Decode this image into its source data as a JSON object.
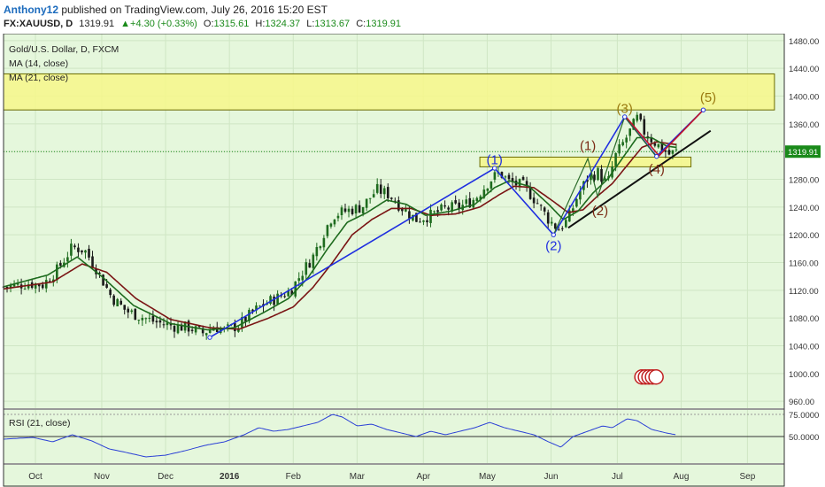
{
  "header": {
    "author": "Anthony12",
    "published": "published on TradingView.com, July 26, 2016 15:20 EST",
    "symbol": "FX:XAUUSD, D",
    "last": "1319.91",
    "change_arrow": "▲",
    "change": "+4.30 (+0.33%)",
    "o_label": "O:",
    "o_value": "1315.61",
    "h_label": "H:",
    "h_value": "1324.37",
    "l_label": "L:",
    "l_value": "1313.67",
    "c_label": "C:",
    "c_value": "1319.91"
  },
  "legend": {
    "title": "Gold/U.S. Dollar, D, FXCM",
    "ma14": "MA (14, close)",
    "ma21": "MA (21, close)",
    "rsi": "RSI (21, close)"
  },
  "colors": {
    "background": "#e5f7dc",
    "grid": "#cfe6c4",
    "candle_up": "#1e6b1e",
    "candle_down": "#1a1a1a",
    "ma14": "#1e6b1e",
    "ma21": "#7a1414",
    "rsi": "#2a3fd6",
    "blue_line": "#1f2fe0",
    "zone_fill": "#f7f78a",
    "zone_stroke": "#6b6b00",
    "label_blue": "#1f2fe0",
    "label_brown": "#7a2a14",
    "label_gold": "#9a7a10",
    "last_price_line": "#1a8a1a"
  },
  "chart_data": {
    "type": "line",
    "price_axis": {
      "ticks": [
        1480.0,
        1440.0,
        1400.0,
        1360.0,
        1320.0,
        1280.0,
        1240.0,
        1200.0,
        1160.0,
        1120.0,
        1080.0,
        1040.0,
        1000.0,
        960.0
      ],
      "tick_labels": [
        "1480.00",
        "1440.00",
        "1400.00",
        "1360.00",
        "1320.00",
        "1280.00",
        "1240.00",
        "1200.00",
        "1160.00",
        "1120.00",
        "1080.00",
        "1040.00",
        "1000.00",
        "960.00"
      ],
      "range": [
        950,
        1490
      ],
      "last_price_label": "1319.91",
      "last_price": 1319.91
    },
    "rsi_axis": {
      "tick_labels": [
        "75.0000",
        "50.0000"
      ],
      "ticks": [
        75,
        50
      ],
      "range": [
        20,
        80
      ]
    },
    "time_axis": {
      "labels": [
        "Oct",
        "Nov",
        "Dec",
        "2016",
        "Feb",
        "Mar",
        "Apr",
        "May",
        "Jun",
        "Jul",
        "Aug",
        "Sep"
      ],
      "positions": [
        0.5,
        3.2,
        5.8,
        8.4,
        11.0,
        13.6,
        16.3,
        18.9,
        21.5,
        24.2,
        26.8,
        29.5
      ],
      "range": [
        -0.8,
        31
      ]
    },
    "price_anchors": [
      [
        -0.8,
        1125
      ],
      [
        0.2,
        1130
      ],
      [
        0.8,
        1128
      ],
      [
        1.4,
        1150
      ],
      [
        2.0,
        1182
      ],
      [
        2.5,
        1178
      ],
      [
        3.0,
        1150
      ],
      [
        3.6,
        1110
      ],
      [
        4.2,
        1090
      ],
      [
        4.8,
        1082
      ],
      [
        5.4,
        1074
      ],
      [
        6.2,
        1068
      ],
      [
        6.8,
        1066
      ],
      [
        7.3,
        1058
      ],
      [
        7.8,
        1068
      ],
      [
        8.2,
        1062
      ],
      [
        8.8,
        1070
      ],
      [
        9.4,
        1090
      ],
      [
        9.9,
        1102
      ],
      [
        10.4,
        1110
      ],
      [
        10.9,
        1120
      ],
      [
        11.4,
        1148
      ],
      [
        11.8,
        1168
      ],
      [
        12.2,
        1200
      ],
      [
        12.6,
        1228
      ],
      [
        13.2,
        1235
      ],
      [
        13.8,
        1240
      ],
      [
        14.4,
        1265
      ],
      [
        14.9,
        1258
      ],
      [
        15.4,
        1240
      ],
      [
        16.0,
        1222
      ],
      [
        16.6,
        1228
      ],
      [
        17.2,
        1238
      ],
      [
        17.8,
        1240
      ],
      [
        18.4,
        1252
      ],
      [
        19.0,
        1278
      ],
      [
        19.4,
        1290
      ],
      [
        19.8,
        1276
      ],
      [
        20.4,
        1270
      ],
      [
        20.9,
        1248
      ],
      [
        21.4,
        1222
      ],
      [
        21.8,
        1208
      ],
      [
        22.2,
        1222
      ],
      [
        22.6,
        1258
      ],
      [
        23.0,
        1282
      ],
      [
        23.4,
        1290
      ],
      [
        23.8,
        1272
      ],
      [
        24.1,
        1312
      ],
      [
        24.4,
        1330
      ],
      [
        24.7,
        1348
      ],
      [
        25.0,
        1368
      ],
      [
        25.3,
        1348
      ],
      [
        25.7,
        1334
      ],
      [
        26.0,
        1325
      ],
      [
        26.3,
        1316
      ],
      [
        26.6,
        1320
      ]
    ],
    "ma14_anchors": [
      [
        -0.8,
        1125
      ],
      [
        1.0,
        1142
      ],
      [
        2.2,
        1168
      ],
      [
        3.2,
        1140
      ],
      [
        4.5,
        1098
      ],
      [
        6.0,
        1072
      ],
      [
        7.5,
        1063
      ],
      [
        8.6,
        1066
      ],
      [
        9.8,
        1088
      ],
      [
        10.8,
        1108
      ],
      [
        11.6,
        1138
      ],
      [
        12.4,
        1180
      ],
      [
        13.2,
        1218
      ],
      [
        14.0,
        1232
      ],
      [
        14.8,
        1250
      ],
      [
        15.6,
        1244
      ],
      [
        16.4,
        1228
      ],
      [
        17.4,
        1234
      ],
      [
        18.4,
        1244
      ],
      [
        19.2,
        1268
      ],
      [
        19.8,
        1278
      ],
      [
        20.6,
        1270
      ],
      [
        21.4,
        1244
      ],
      [
        22.0,
        1222
      ],
      [
        22.6,
        1234
      ],
      [
        23.2,
        1260
      ],
      [
        23.8,
        1280
      ],
      [
        24.4,
        1310
      ],
      [
        25.0,
        1340
      ],
      [
        25.6,
        1340
      ],
      [
        26.2,
        1328
      ],
      [
        26.6,
        1326
      ]
    ],
    "ma21_anchors": [
      [
        -0.8,
        1122
      ],
      [
        1.2,
        1132
      ],
      [
        2.4,
        1158
      ],
      [
        3.4,
        1146
      ],
      [
        4.6,
        1108
      ],
      [
        6.0,
        1078
      ],
      [
        7.6,
        1066
      ],
      [
        8.8,
        1064
      ],
      [
        10.0,
        1080
      ],
      [
        11.0,
        1096
      ],
      [
        11.8,
        1124
      ],
      [
        12.6,
        1160
      ],
      [
        13.4,
        1200
      ],
      [
        14.2,
        1222
      ],
      [
        15.0,
        1238
      ],
      [
        15.8,
        1238
      ],
      [
        16.6,
        1228
      ],
      [
        17.6,
        1230
      ],
      [
        18.6,
        1240
      ],
      [
        19.4,
        1258
      ],
      [
        20.0,
        1270
      ],
      [
        20.8,
        1268
      ],
      [
        21.6,
        1248
      ],
      [
        22.2,
        1232
      ],
      [
        22.8,
        1236
      ],
      [
        23.4,
        1256
      ],
      [
        24.0,
        1274
      ],
      [
        24.6,
        1300
      ],
      [
        25.2,
        1326
      ],
      [
        25.8,
        1334
      ],
      [
        26.6,
        1330
      ]
    ],
    "rsi_anchors": [
      [
        -0.8,
        47
      ],
      [
        0.4,
        49
      ],
      [
        1.2,
        44
      ],
      [
        2.0,
        52
      ],
      [
        2.8,
        45
      ],
      [
        3.5,
        36
      ],
      [
        4.2,
        32
      ],
      [
        5.0,
        27
      ],
      [
        5.8,
        29
      ],
      [
        6.6,
        34
      ],
      [
        7.4,
        40
      ],
      [
        8.2,
        44
      ],
      [
        9.0,
        52
      ],
      [
        9.6,
        60
      ],
      [
        10.2,
        56
      ],
      [
        10.8,
        58
      ],
      [
        11.4,
        62
      ],
      [
        12.0,
        66
      ],
      [
        12.6,
        75
      ],
      [
        13.0,
        72
      ],
      [
        13.6,
        62
      ],
      [
        14.2,
        64
      ],
      [
        14.8,
        58
      ],
      [
        15.4,
        54
      ],
      [
        16.0,
        50
      ],
      [
        16.6,
        56
      ],
      [
        17.2,
        52
      ],
      [
        17.8,
        56
      ],
      [
        18.4,
        60
      ],
      [
        19.0,
        66
      ],
      [
        19.6,
        60
      ],
      [
        20.2,
        56
      ],
      [
        20.8,
        52
      ],
      [
        21.4,
        44
      ],
      [
        21.9,
        38
      ],
      [
        22.4,
        50
      ],
      [
        23.0,
        56
      ],
      [
        23.6,
        62
      ],
      [
        24.0,
        60
      ],
      [
        24.6,
        70
      ],
      [
        25.0,
        68
      ],
      [
        25.6,
        58
      ],
      [
        26.2,
        54
      ],
      [
        26.6,
        52
      ]
    ],
    "blue_wave": [
      [
        7.6,
        1052
      ],
      [
        19.2,
        1296
      ],
      [
        21.6,
        1200
      ],
      [
        24.5,
        1370
      ],
      [
        25.8,
        1313
      ],
      [
        27.7,
        1380
      ]
    ],
    "brown_wave": [
      [
        21.6,
        1200
      ],
      [
        23.0,
        1310
      ],
      [
        23.4,
        1255
      ],
      [
        24.5,
        1370
      ],
      [
        25.8,
        1312
      ]
    ],
    "red_wave": [
      [
        24.5,
        1372
      ],
      [
        25.9,
        1314
      ],
      [
        27.7,
        1380
      ]
    ],
    "trend_line": [
      [
        22.2,
        1210
      ],
      [
        28.0,
        1350
      ]
    ],
    "zones": [
      {
        "x0": -0.8,
        "x1": 30.6,
        "y0": 1380,
        "y1": 1432
      },
      {
        "x0": 18.6,
        "x1": 27.2,
        "y0": 1298,
        "y1": 1312
      }
    ],
    "wave_labels": [
      {
        "text": "(1)",
        "x": 19.2,
        "y": 1302,
        "color": "label_blue"
      },
      {
        "text": "(2)",
        "x": 21.6,
        "y": 1178,
        "color": "label_blue"
      },
      {
        "text": "(1)",
        "x": 23.0,
        "y": 1322,
        "color": "label_brown"
      },
      {
        "text": "(2)",
        "x": 23.5,
        "y": 1228,
        "color": "label_brown"
      },
      {
        "text": "(3)",
        "x": 24.5,
        "y": 1376,
        "color": "label_gold"
      },
      {
        "text": "(4)",
        "x": 25.8,
        "y": 1288,
        "color": "label_brown"
      },
      {
        "text": "(5)",
        "x": 27.9,
        "y": 1392,
        "color": "label_gold"
      }
    ]
  }
}
